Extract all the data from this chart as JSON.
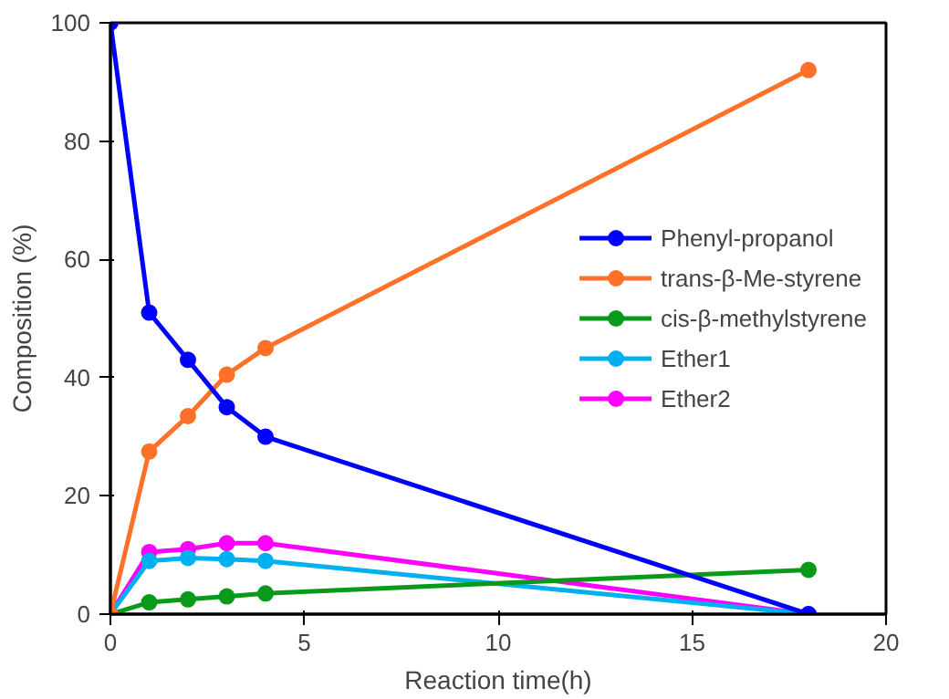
{
  "chart_data": {
    "type": "line",
    "xlabel": "Reaction time(h)",
    "ylabel": "Composition (%)",
    "x": [
      0,
      1,
      2,
      3,
      4,
      18
    ],
    "series": [
      {
        "name": "Phenyl-propanol",
        "color": "#0000ff",
        "values": [
          100,
          51,
          43,
          35,
          30,
          0
        ]
      },
      {
        "name": "trans-β-Me-styrene",
        "color": "#ff7128",
        "values": [
          0,
          27.5,
          33.5,
          40.5,
          45,
          92
        ]
      },
      {
        "name": "cis-β-methylstyrene",
        "color": "#0a9a1a",
        "values": [
          0,
          2,
          2.5,
          3,
          3.5,
          7.5
        ]
      },
      {
        "name": "Ether1",
        "color": "#00b0f0",
        "values": [
          0,
          9,
          9.5,
          9.3,
          9,
          0
        ]
      },
      {
        "name": "Ether2",
        "color": "#ff00ff",
        "values": [
          0,
          10.5,
          11,
          12,
          12,
          0
        ]
      }
    ],
    "xlim": [
      0,
      20
    ],
    "ylim": [
      0,
      100
    ],
    "xticks": [
      0,
      5,
      10,
      15,
      20
    ],
    "yticks": [
      0,
      20,
      40,
      60,
      80,
      100
    ],
    "grid": false,
    "legend": "right",
    "marker": "circle",
    "line_style": "solid"
  }
}
